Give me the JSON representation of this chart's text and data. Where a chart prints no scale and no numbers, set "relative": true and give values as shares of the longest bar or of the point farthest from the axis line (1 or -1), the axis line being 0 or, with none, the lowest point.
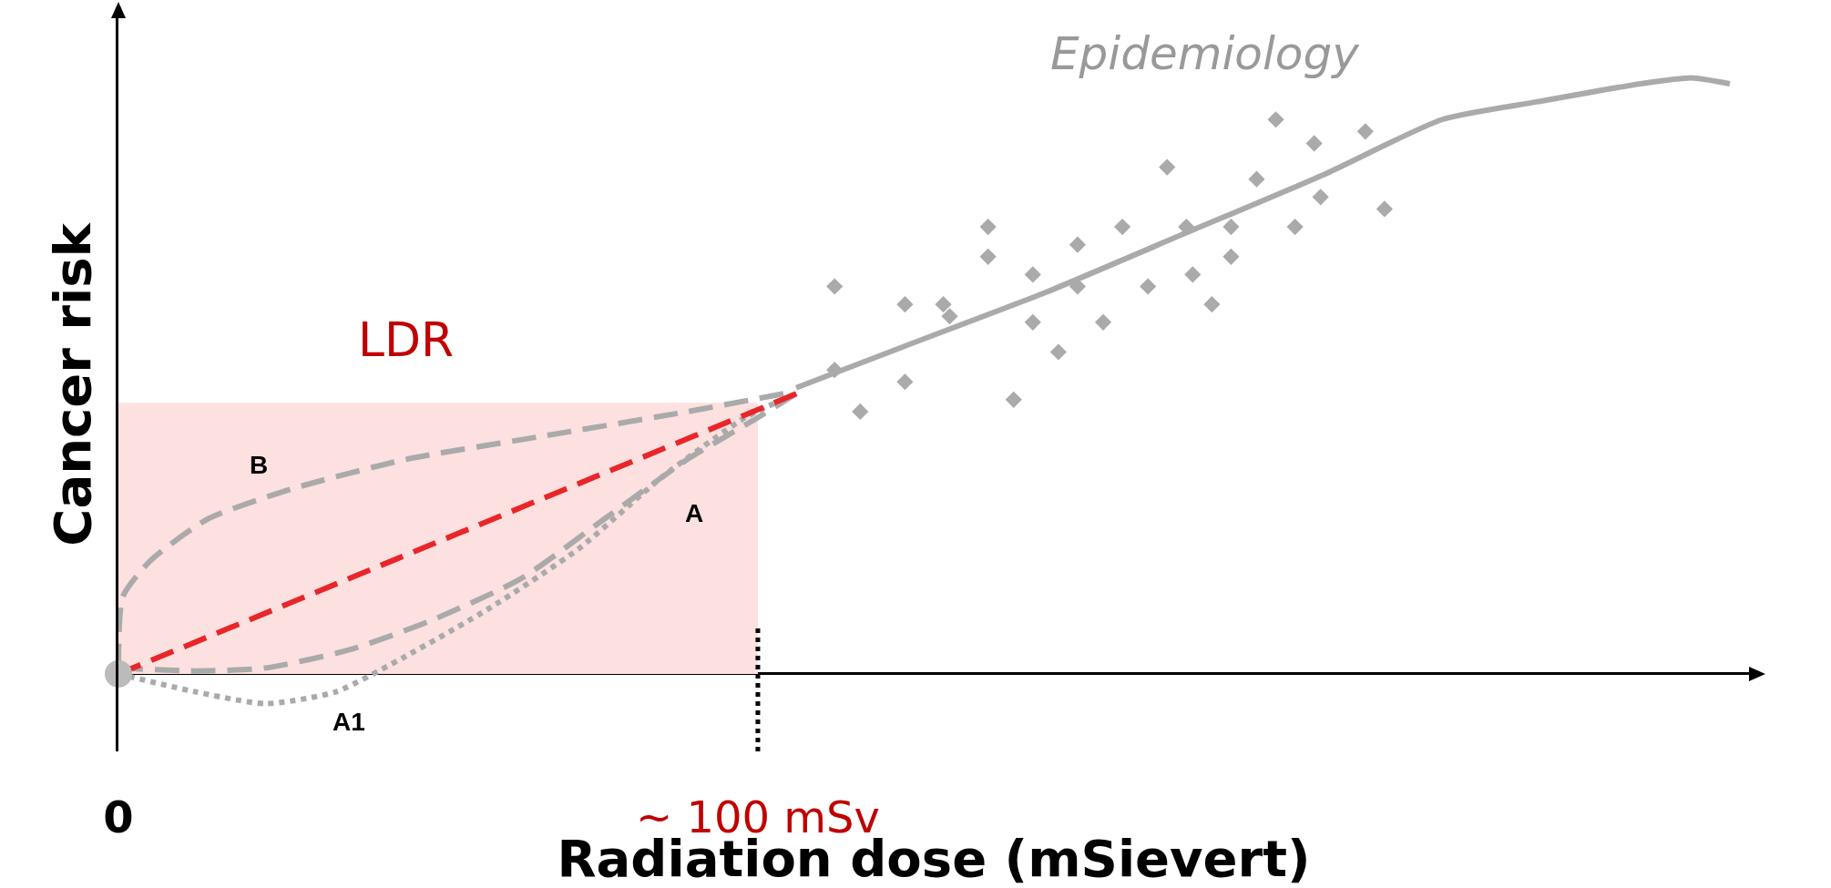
{
  "chart_data": {
    "type": "line",
    "relative": true,
    "xlabel": "Radiation dose (mSievert)",
    "ylabel": "Cancer risk",
    "xlim": [
      0,
      255
    ],
    "xticks": [
      0,
      {
        "value": 100,
        "label": "~ 100 mSv"
      }
    ],
    "tick_labels": "x",
    "grid": false,
    "legend": false,
    "marker": "none",
    "series": [
      {
        "type": "area",
        "color": "#fde0e0",
        "x": [
          0,
          100
        ],
        "values": [
          0.455,
          0.455
        ]
      },
      {
        "color": "#aaaaaa",
        "line_style": "solid",
        "x": [
          106,
          123,
          145,
          167,
          189,
          207,
          222,
          238,
          246,
          252
        ],
        "values": [
          0.48,
          0.55,
          0.64,
          0.74,
          0.84,
          0.93,
          0.96,
          0.99,
          1,
          0.99
        ]
      },
      {
        "color": "#aaaaaa",
        "line_style": "dashed",
        "x": [
          0,
          0.7,
          5,
          14,
          27,
          45,
          67,
          89,
          104
        ],
        "values": [
          0.01,
          0.13,
          0.19,
          0.26,
          0.31,
          0.36,
          0.4,
          0.44,
          0.47
        ]
      },
      {
        "color": "#aaaaaa",
        "line_style": "dashed",
        "x": [
          0,
          12,
          23,
          36,
          49,
          63,
          76,
          89,
          100,
          106
        ],
        "values": [
          0.01,
          0.005,
          0.01,
          0.04,
          0.09,
          0.16,
          0.26,
          0.36,
          0.43,
          0.47
        ]
      },
      {
        "color": "#aaaaaa",
        "line_style": "dotted",
        "x": [
          0,
          12,
          23,
          34,
          45,
          58,
          72,
          85,
          98,
          106
        ],
        "values": [
          0,
          -0.03,
          -0.05,
          -0.03,
          0.03,
          0.11,
          0.21,
          0.33,
          0.43,
          0.47
        ]
      },
      {
        "color": "#e8262a",
        "line_style": "dashed",
        "x": [
          0,
          106
        ],
        "values": [
          0,
          0.47
        ]
      },
      {
        "type": "scatter",
        "color": "#aaaaaa",
        "marker": "diamond",
        "x": [
          112,
          123,
          129,
          130,
          136,
          136,
          143,
          143,
          150,
          150,
          154,
          157,
          161,
          164,
          167,
          168,
          171,
          174,
          174,
          178,
          181,
          184,
          187,
          188,
          195,
          198,
          112,
          123,
          116,
          140,
          147
        ],
        "values": [
          0.65,
          0.62,
          0.62,
          0.6,
          0.75,
          0.7,
          0.67,
          0.59,
          0.72,
          0.65,
          0.59,
          0.75,
          0.65,
          0.85,
          0.75,
          0.67,
          0.62,
          0.75,
          0.7,
          0.83,
          0.93,
          0.75,
          0.89,
          0.8,
          0.91,
          0.78,
          0.51,
          0.49,
          0.44,
          0.46,
          0.54
        ]
      },
      {
        "type": "scatter",
        "color": "#bbbbbb",
        "marker": "circle",
        "x": [
          0
        ],
        "values": [
          0
        ]
      }
    ],
    "ref_lines": [
      {
        "axis": "x",
        "value": 100,
        "color": "#000000",
        "line_style": "dotted"
      }
    ],
    "annotations": [
      "Epidemiology",
      "LDR",
      "B",
      "A",
      "A1"
    ]
  }
}
